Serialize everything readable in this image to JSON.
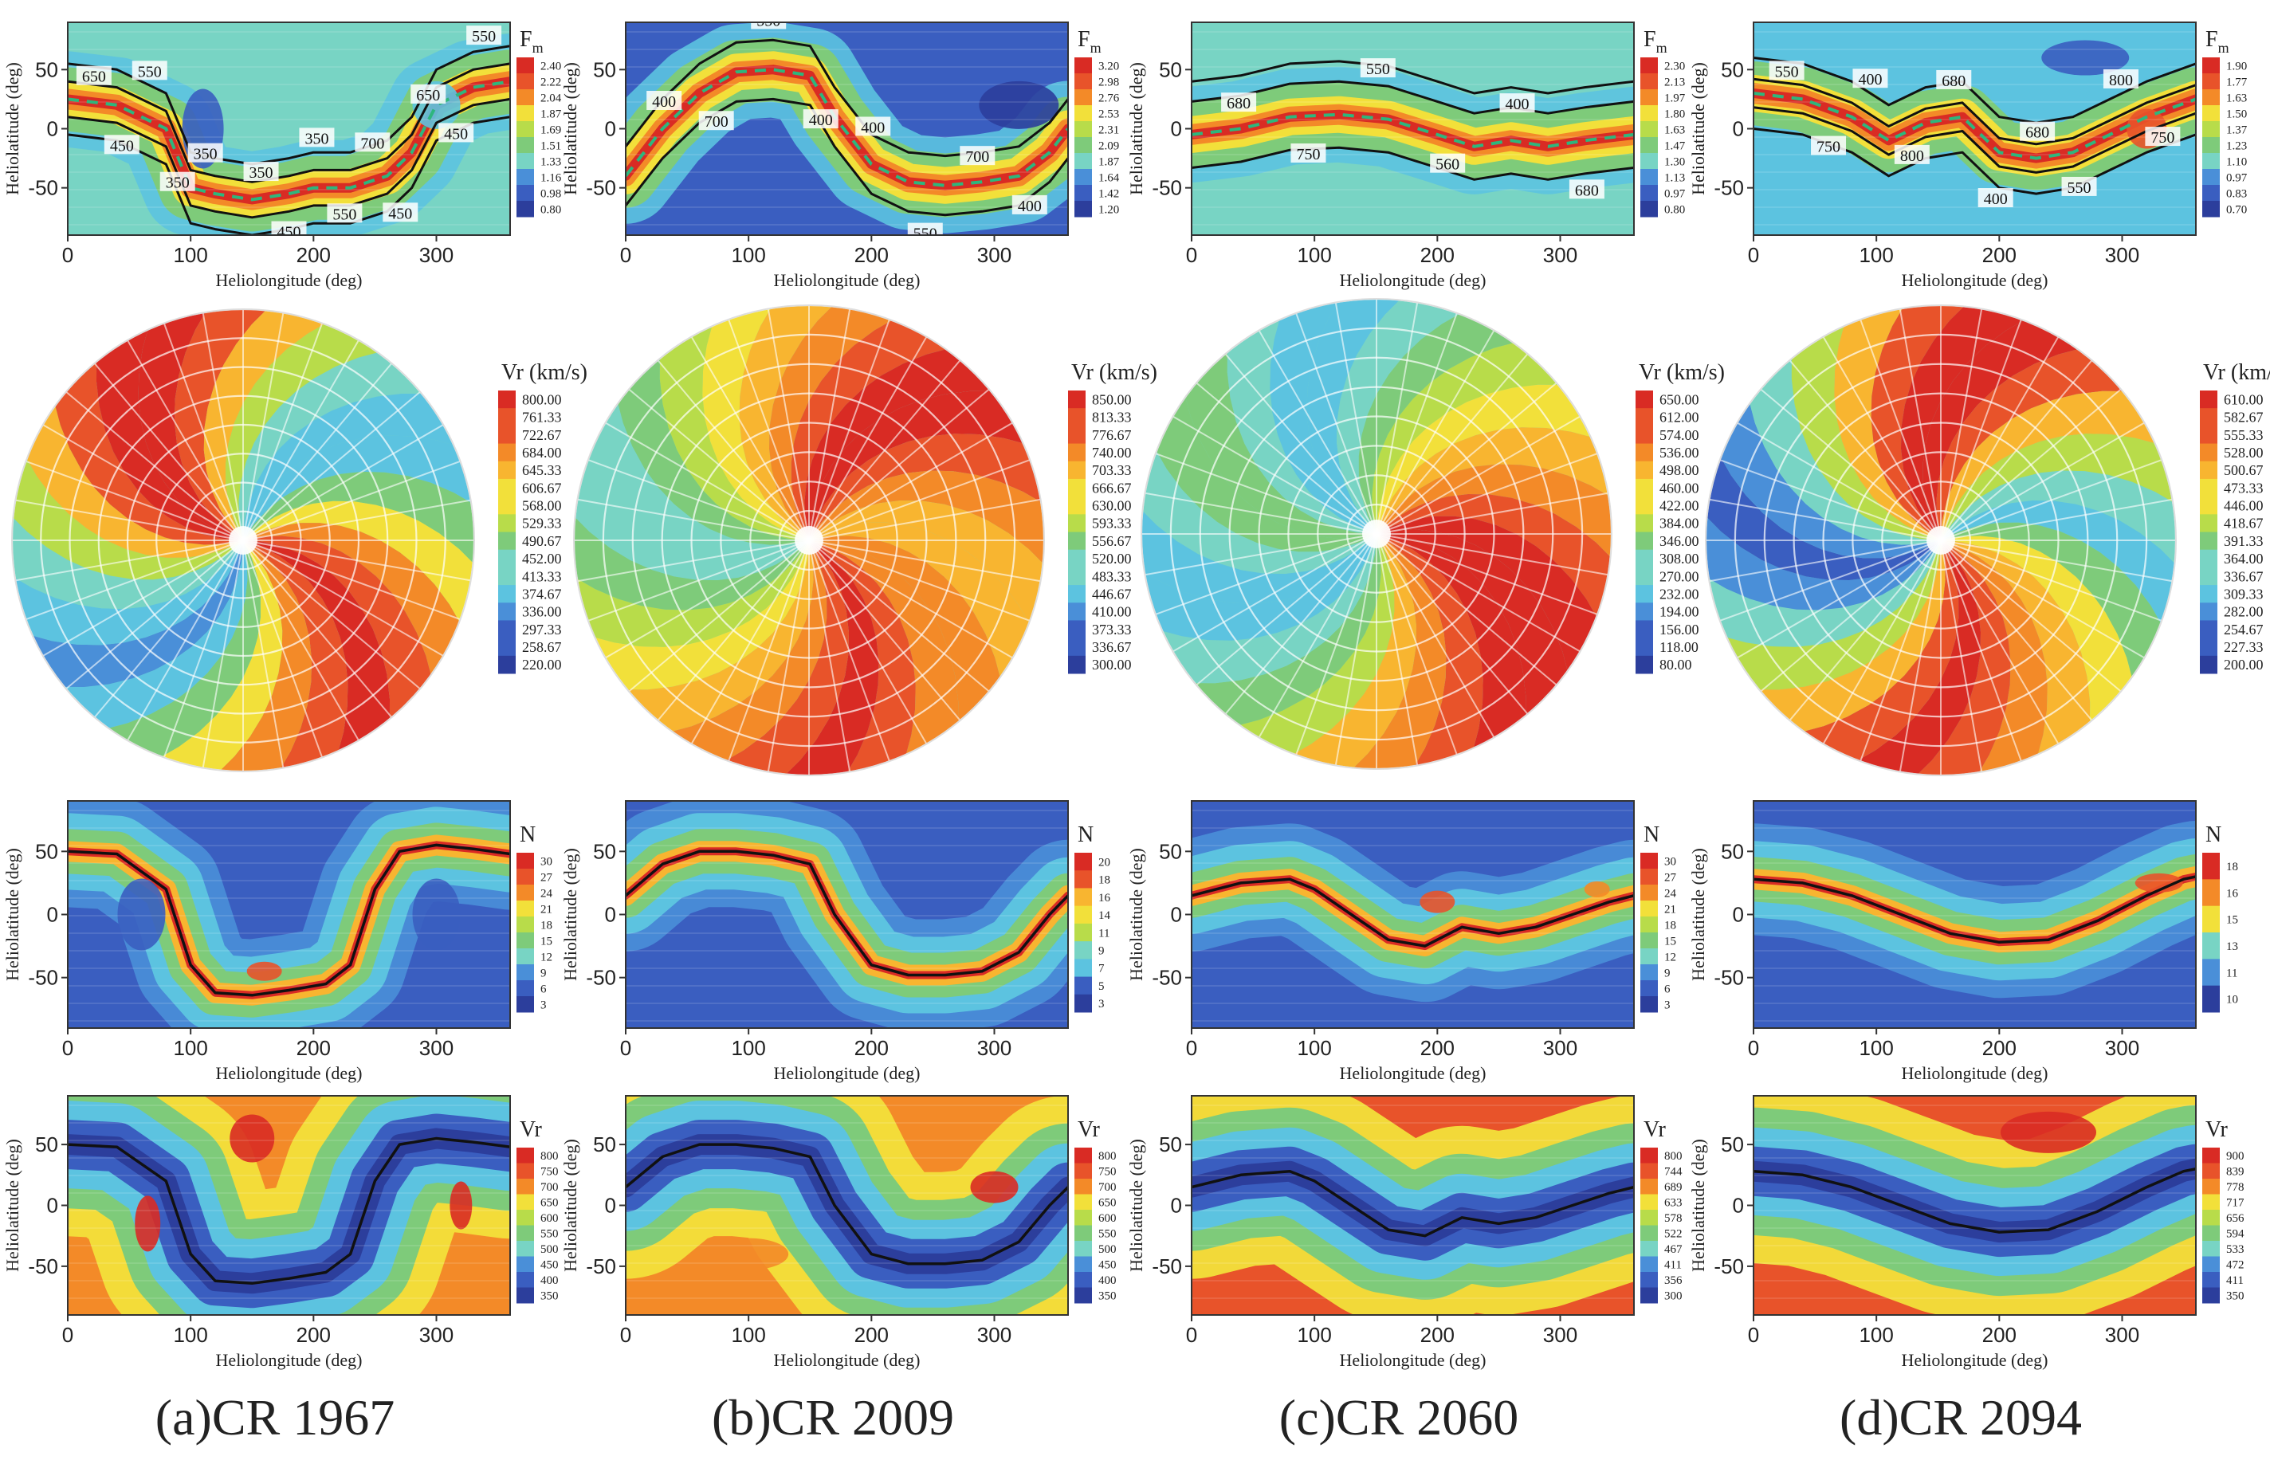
{
  "palette": [
    "#2c3e9c",
    "#3a5ec0",
    "#4a8fd8",
    "#5cc3e0",
    "#78d4c4",
    "#7ecb7a",
    "#b8dc4a",
    "#f2e03a",
    "#f8b530",
    "#f38a28",
    "#e8532a",
    "#d92b24"
  ],
  "colors": {
    "contour": "#111111",
    "dash": "#2eb67d",
    "grid": "#ffffff"
  },
  "axis_labels": {
    "lat": "Heliolatitude (deg)",
    "lon": "Heliolongitude (deg)"
  },
  "columns": [
    {
      "label": "(a)CR 1967",
      "fm": {
        "title": "F",
        "title_sub": "m",
        "ticks": [
          "2.40",
          "2.22",
          "2.04",
          "1.87",
          "1.69",
          "1.51",
          "1.33",
          "1.16",
          "0.98",
          "0.80"
        ],
        "contour_labels": [
          "650",
          "450",
          "550",
          "350",
          "350",
          "700",
          "350",
          "450",
          "350",
          "550",
          "700",
          "450",
          "650",
          "450",
          "550"
        ]
      },
      "vr_polar": {
        "title": "Vr (km/s)",
        "ticks": [
          "800.00",
          "761.33",
          "722.67",
          "684.00",
          "645.33",
          "606.67",
          "568.00",
          "529.33",
          "490.67",
          "452.00",
          "413.33",
          "374.67",
          "336.00",
          "297.33",
          "258.67",
          "220.00"
        ]
      },
      "n": {
        "title": "N",
        "ticks": [
          "30",
          "27",
          "24",
          "21",
          "18",
          "15",
          "12",
          "9",
          "6",
          "3"
        ]
      },
      "vr": {
        "title": "Vr",
        "ticks": [
          "800",
          "750",
          "700",
          "650",
          "600",
          "550",
          "500",
          "450",
          "400",
          "350"
        ]
      }
    },
    {
      "label": "(b)CR 2009",
      "fm": {
        "title": "F",
        "title_sub": "m",
        "ticks": [
          "3.20",
          "2.98",
          "2.76",
          "2.53",
          "2.31",
          "2.09",
          "1.87",
          "1.64",
          "1.42",
          "1.20"
        ],
        "contour_labels": [
          "400",
          "700",
          "550",
          "400",
          "400",
          "550",
          "700",
          "400"
        ]
      },
      "vr_polar": {
        "title": "Vr (km/s)",
        "ticks": [
          "850.00",
          "813.33",
          "776.67",
          "740.00",
          "703.33",
          "666.67",
          "630.00",
          "593.33",
          "556.67",
          "520.00",
          "483.33",
          "446.67",
          "410.00",
          "373.33",
          "336.67",
          "300.00"
        ]
      },
      "n": {
        "title": "N",
        "ticks": [
          "20",
          "18",
          "16",
          "14",
          "11",
          "9",
          "7",
          "5",
          "3"
        ]
      },
      "vr": {
        "title": "Vr",
        "ticks": [
          "800",
          "750",
          "700",
          "650",
          "600",
          "550",
          "500",
          "450",
          "400",
          "350"
        ]
      }
    },
    {
      "label": "(c)CR 2060",
      "fm": {
        "title": "F",
        "title_sub": "m",
        "ticks": [
          "2.30",
          "2.13",
          "1.97",
          "1.80",
          "1.63",
          "1.47",
          "1.30",
          "1.13",
          "0.97",
          "0.80"
        ],
        "contour_labels": [
          "680",
          "750",
          "550",
          "560",
          "400",
          "680"
        ]
      },
      "vr_polar": {
        "title": "Vr (km/s)",
        "ticks": [
          "650.00",
          "612.00",
          "574.00",
          "536.00",
          "498.00",
          "460.00",
          "422.00",
          "384.00",
          "346.00",
          "308.00",
          "270.00",
          "232.00",
          "194.00",
          "156.00",
          "118.00",
          "80.00"
        ]
      },
      "n": {
        "title": "N",
        "ticks": [
          "30",
          "27",
          "24",
          "21",
          "18",
          "15",
          "12",
          "9",
          "6",
          "3"
        ]
      },
      "vr": {
        "title": "Vr",
        "ticks": [
          "800",
          "744",
          "689",
          "633",
          "578",
          "522",
          "467",
          "411",
          "356",
          "300"
        ]
      }
    },
    {
      "label": "(d)CR 2094",
      "fm": {
        "title": "F",
        "title_sub": "m",
        "ticks": [
          "1.90",
          "1.77",
          "1.63",
          "1.50",
          "1.37",
          "1.23",
          "1.10",
          "0.97",
          "0.83",
          "0.70"
        ],
        "contour_labels": [
          "550",
          "750",
          "400",
          "800",
          "680",
          "400",
          "680",
          "550",
          "800",
          "750"
        ]
      },
      "vr_polar": {
        "title": "Vr (km/s)",
        "ticks": [
          "610.00",
          "582.67",
          "555.33",
          "528.00",
          "500.67",
          "473.33",
          "446.00",
          "418.67",
          "391.33",
          "364.00",
          "336.67",
          "309.33",
          "282.00",
          "254.67",
          "227.33",
          "200.00"
        ]
      },
      "n": {
        "title": "N",
        "ticks": [
          "18",
          "16",
          "15",
          "13",
          "11",
          "10"
        ]
      },
      "vr": {
        "title": "Vr",
        "ticks": [
          "900",
          "839",
          "778",
          "717",
          "656",
          "594",
          "533",
          "472",
          "411",
          "350"
        ]
      }
    }
  ],
  "chart_data": [
    {
      "type": "heatmap",
      "panel": "(a)CR 1967 — Fm",
      "xlabel": "Heliolongitude (deg)",
      "ylabel": "Heliolatitude (deg)",
      "xlim": [
        0,
        360
      ],
      "ylim": [
        -90,
        90
      ],
      "xticks": [
        0,
        100,
        200,
        300
      ],
      "yticks": [
        -50,
        0,
        50
      ],
      "colorbar": {
        "label": "Fm",
        "min": 0.8,
        "max": 2.4
      },
      "contour_levels": [
        350,
        450,
        550,
        650,
        700
      ],
      "band": {
        "x": [
          0,
          40,
          80,
          100,
          120,
          150,
          180,
          200,
          230,
          260,
          280,
          300,
          330,
          360
        ],
        "y": [
          25,
          20,
          0,
          -50,
          -55,
          -60,
          -55,
          -50,
          -50,
          -40,
          -20,
          20,
          35,
          40
        ]
      }
    },
    {
      "type": "heatmap",
      "panel": "(a)CR 1967 — Vr (km/s) polar",
      "colorbar": {
        "label": "Vr (km/s)",
        "min": 220.0,
        "max": 800.0
      }
    },
    {
      "type": "heatmap",
      "panel": "(a)CR 1967 — N",
      "xlabel": "Heliolongitude (deg)",
      "ylabel": "Heliolatitude (deg)",
      "xlim": [
        0,
        360
      ],
      "ylim": [
        -90,
        90
      ],
      "xticks": [
        0,
        100,
        200,
        300
      ],
      "yticks": [
        -50,
        0,
        50
      ],
      "colorbar": {
        "label": "N",
        "min": 3,
        "max": 30
      },
      "band": {
        "x": [
          0,
          40,
          80,
          100,
          120,
          150,
          180,
          210,
          230,
          250,
          270,
          300,
          330,
          360
        ],
        "y": [
          50,
          48,
          20,
          -40,
          -62,
          -64,
          -60,
          -55,
          -40,
          20,
          50,
          55,
          52,
          48
        ]
      }
    },
    {
      "type": "heatmap",
      "panel": "(a)CR 1967 — Vr",
      "xlabel": "Heliolongitude (deg)",
      "ylabel": "Heliolatitude (deg)",
      "xlim": [
        0,
        360
      ],
      "ylim": [
        -90,
        90
      ],
      "xticks": [
        0,
        100,
        200,
        300
      ],
      "yticks": [
        -50,
        0,
        50
      ],
      "colorbar": {
        "label": "Vr",
        "min": 350,
        "max": 800
      },
      "band": {
        "x": [
          0,
          40,
          80,
          100,
          120,
          150,
          180,
          210,
          230,
          250,
          270,
          300,
          330,
          360
        ],
        "y": [
          50,
          48,
          20,
          -40,
          -62,
          -64,
          -60,
          -55,
          -40,
          20,
          50,
          55,
          52,
          48
        ]
      }
    },
    {
      "type": "heatmap",
      "panel": "(b)CR 2009 — Fm",
      "xlabel": "Heliolongitude (deg)",
      "ylabel": "Heliolatitude (deg)",
      "xlim": [
        0,
        360
      ],
      "ylim": [
        -90,
        90
      ],
      "xticks": [
        0,
        100,
        200,
        300
      ],
      "yticks": [
        -50,
        0,
        50
      ],
      "colorbar": {
        "label": "Fm",
        "min": 1.2,
        "max": 3.2
      },
      "contour_levels": [
        400,
        550,
        700
      ],
      "band": {
        "x": [
          0,
          30,
          60,
          90,
          120,
          150,
          170,
          200,
          230,
          260,
          290,
          320,
          345,
          360
        ],
        "y": [
          -40,
          0,
          30,
          48,
          50,
          45,
          10,
          -30,
          -45,
          -48,
          -45,
          -40,
          -20,
          0
        ]
      }
    },
    {
      "type": "heatmap",
      "panel": "(b)CR 2009 — Vr (km/s) polar",
      "colorbar": {
        "label": "Vr (km/s)",
        "min": 300.0,
        "max": 850.0
      }
    },
    {
      "type": "heatmap",
      "panel": "(b)CR 2009 — N",
      "xlabel": "Heliolongitude (deg)",
      "ylabel": "Heliolatitude (deg)",
      "xlim": [
        0,
        360
      ],
      "ylim": [
        -90,
        90
      ],
      "xticks": [
        0,
        100,
        200,
        300
      ],
      "yticks": [
        -50,
        0,
        50
      ],
      "colorbar": {
        "label": "N",
        "min": 3,
        "max": 20
      },
      "band": {
        "x": [
          0,
          30,
          60,
          90,
          120,
          150,
          170,
          200,
          230,
          260,
          290,
          320,
          345,
          360
        ],
        "y": [
          15,
          40,
          50,
          50,
          47,
          40,
          0,
          -40,
          -48,
          -48,
          -45,
          -30,
          0,
          15
        ]
      }
    },
    {
      "type": "heatmap",
      "panel": "(b)CR 2009 — Vr",
      "xlabel": "Heliolongitude (deg)",
      "ylabel": "Heliolatitude (deg)",
      "xlim": [
        0,
        360
      ],
      "ylim": [
        -90,
        90
      ],
      "xticks": [
        0,
        100,
        200,
        300
      ],
      "yticks": [
        -50,
        0,
        50
      ],
      "colorbar": {
        "label": "Vr",
        "min": 350,
        "max": 800
      },
      "band": {
        "x": [
          0,
          30,
          60,
          90,
          120,
          150,
          170,
          200,
          230,
          260,
          290,
          320,
          345,
          360
        ],
        "y": [
          15,
          40,
          50,
          50,
          47,
          40,
          0,
          -40,
          -48,
          -48,
          -45,
          -30,
          0,
          15
        ]
      }
    },
    {
      "type": "heatmap",
      "panel": "(c)CR 2060 — Fm",
      "xlabel": "Heliolongitude (deg)",
      "ylabel": "Heliolatitude (deg)",
      "xlim": [
        0,
        360
      ],
      "ylim": [
        -90,
        90
      ],
      "xticks": [
        0,
        100,
        200,
        300
      ],
      "yticks": [
        -50,
        0,
        50
      ],
      "colorbar": {
        "label": "Fm",
        "min": 0.8,
        "max": 2.3
      },
      "contour_levels": [
        400,
        550,
        560,
        680,
        750
      ],
      "band": {
        "x": [
          0,
          40,
          80,
          120,
          160,
          200,
          230,
          260,
          290,
          320,
          360
        ],
        "y": [
          -5,
          0,
          10,
          12,
          8,
          -5,
          -15,
          -10,
          -15,
          -10,
          -5
        ]
      }
    },
    {
      "type": "heatmap",
      "panel": "(c)CR 2060 — Vr (km/s) polar",
      "colorbar": {
        "label": "Vr (km/s)",
        "min": 80.0,
        "max": 650.0
      }
    },
    {
      "type": "heatmap",
      "panel": "(c)CR 2060 — N",
      "xlabel": "Heliolongitude (deg)",
      "ylabel": "Heliolatitude (deg)",
      "xlim": [
        0,
        360
      ],
      "ylim": [
        -90,
        90
      ],
      "xticks": [
        0,
        100,
        200,
        300
      ],
      "yticks": [
        -50,
        0,
        50
      ],
      "colorbar": {
        "label": "N",
        "min": 3,
        "max": 30
      },
      "band": {
        "x": [
          0,
          40,
          80,
          100,
          130,
          160,
          190,
          220,
          250,
          280,
          310,
          340,
          360
        ],
        "y": [
          15,
          25,
          28,
          20,
          0,
          -20,
          -25,
          -10,
          -15,
          -10,
          0,
          10,
          15
        ]
      }
    },
    {
      "type": "heatmap",
      "panel": "(c)CR 2060 — Vr",
      "xlabel": "Heliolongitude (deg)",
      "ylabel": "Heliolatitude (deg)",
      "xlim": [
        0,
        360
      ],
      "ylim": [
        -90,
        90
      ],
      "xticks": [
        0,
        100,
        200,
        300
      ],
      "yticks": [
        -50,
        0,
        50
      ],
      "colorbar": {
        "label": "Vr",
        "min": 300,
        "max": 800
      },
      "band": {
        "x": [
          0,
          40,
          80,
          100,
          130,
          160,
          190,
          220,
          250,
          280,
          310,
          340,
          360
        ],
        "y": [
          15,
          25,
          28,
          20,
          0,
          -20,
          -25,
          -10,
          -15,
          -10,
          0,
          10,
          15
        ]
      }
    },
    {
      "type": "heatmap",
      "panel": "(d)CR 2094 — Fm",
      "xlabel": "Heliolongitude (deg)",
      "ylabel": "Heliolatitude (deg)",
      "xlim": [
        0,
        360
      ],
      "ylim": [
        -90,
        90
      ],
      "xticks": [
        0,
        100,
        200,
        300
      ],
      "yticks": [
        -50,
        0,
        50
      ],
      "colorbar": {
        "label": "Fm",
        "min": 0.7,
        "max": 1.9
      },
      "contour_levels": [
        400,
        550,
        680,
        750,
        800
      ],
      "band": {
        "x": [
          0,
          40,
          80,
          110,
          140,
          170,
          200,
          230,
          260,
          290,
          320,
          360
        ],
        "y": [
          30,
          25,
          10,
          -10,
          5,
          10,
          -20,
          -25,
          -20,
          -5,
          10,
          25
        ]
      }
    },
    {
      "type": "heatmap",
      "panel": "(d)CR 2094 — Vr (km/s) polar",
      "colorbar": {
        "label": "Vr (km/s)",
        "min": 200.0,
        "max": 610.0
      }
    },
    {
      "type": "heatmap",
      "panel": "(d)CR 2094 — N",
      "xlabel": "Heliolongitude (deg)",
      "ylabel": "Heliolatitude (deg)",
      "xlim": [
        0,
        360
      ],
      "ylim": [
        -90,
        90
      ],
      "xticks": [
        0,
        100,
        200,
        300
      ],
      "yticks": [
        -50,
        0,
        50
      ],
      "colorbar": {
        "label": "N",
        "min": 10,
        "max": 18
      },
      "band": {
        "x": [
          0,
          40,
          80,
          120,
          160,
          200,
          240,
          280,
          320,
          350,
          360
        ],
        "y": [
          28,
          25,
          15,
          0,
          -15,
          -22,
          -20,
          -5,
          15,
          28,
          30
        ]
      }
    },
    {
      "type": "heatmap",
      "panel": "(d)CR 2094 — Vr",
      "xlabel": "Heliolongitude (deg)",
      "ylabel": "Heliolatitude (deg)",
      "xlim": [
        0,
        360
      ],
      "ylim": [
        -90,
        90
      ],
      "xticks": [
        0,
        100,
        200,
        300
      ],
      "yticks": [
        -50,
        0,
        50
      ],
      "colorbar": {
        "label": "Vr",
        "min": 350,
        "max": 900
      },
      "band": {
        "x": [
          0,
          40,
          80,
          120,
          160,
          200,
          240,
          280,
          320,
          350,
          360
        ],
        "y": [
          28,
          25,
          15,
          0,
          -15,
          -22,
          -20,
          -5,
          15,
          28,
          30
        ]
      }
    }
  ]
}
